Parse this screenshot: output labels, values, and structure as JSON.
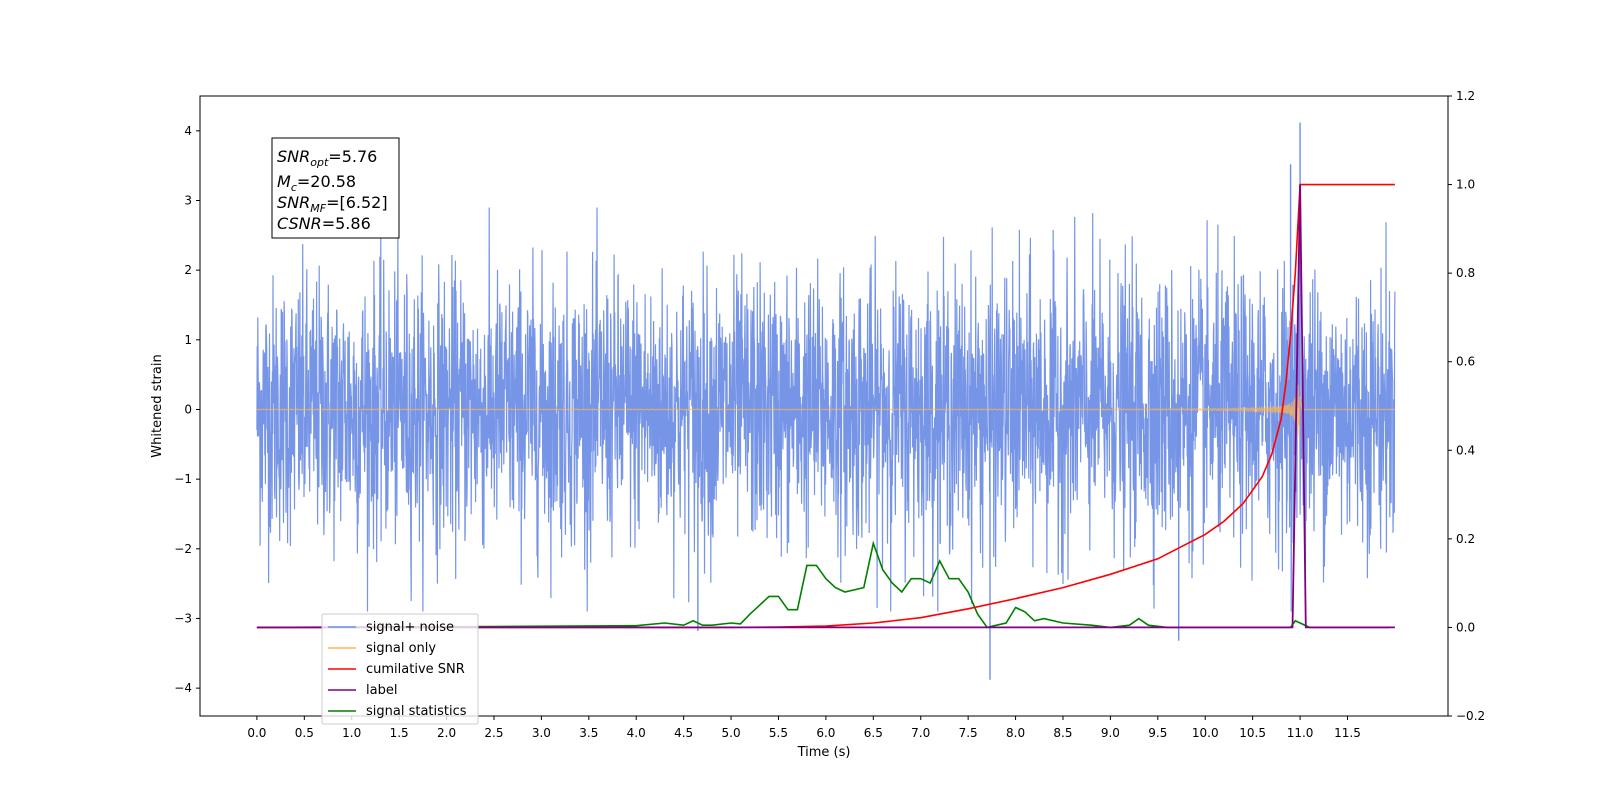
{
  "chart_data": {
    "type": "line",
    "xlabel": "Time (s)",
    "ylabel_left": "Whitened strain",
    "ylabel_right": "",
    "xlim": [
      -0.6,
      12.56
    ],
    "ylim_left": [
      -4.4,
      4.5
    ],
    "ylim_right": [
      -0.2,
      1.2
    ],
    "x_ticks": [
      0.0,
      0.5,
      1.0,
      1.5,
      2.0,
      2.5,
      3.0,
      3.5,
      4.0,
      4.5,
      5.0,
      5.5,
      6.0,
      6.5,
      7.0,
      7.5,
      8.0,
      8.5,
      9.0,
      9.5,
      10.0,
      10.5,
      11.0,
      11.5
    ],
    "x_tick_labels": [
      "0.0",
      "0.5",
      "1.0",
      "1.5",
      "2.0",
      "2.5",
      "3.0",
      "3.5",
      "4.0",
      "4.5",
      "5.0",
      "5.5",
      "6.0",
      "6.5",
      "7.0",
      "7.5",
      "8.0",
      "8.5",
      "9.0",
      "9.5",
      "10.0",
      "10.5",
      "11.0",
      "11.5"
    ],
    "y_ticks_left": [
      4,
      3,
      2,
      1,
      0,
      -1,
      -2,
      -3,
      -4
    ],
    "y_tick_labels_left": [
      "4",
      "3",
      "2",
      "1",
      "0",
      "−1",
      "−2",
      "−3",
      "−4"
    ],
    "y_ticks_right": [
      1.2,
      1.0,
      0.8,
      0.6,
      0.4,
      0.2,
      0.0,
      -0.2
    ],
    "y_tick_labels_right": [
      "1.2",
      "1.0",
      "0.8",
      "0.6",
      "0.4",
      "0.2",
      "0.0",
      "−0.2"
    ],
    "grid": false,
    "legend_position": "lower-left",
    "annotation": {
      "snr_opt": "5.76",
      "mc": "20.58",
      "snr_mf": "[6.52]",
      "csnr": "5.86"
    },
    "series": [
      {
        "name": "signal+ noise",
        "axis": "left",
        "color": "#6f8fe6",
        "x_range": [
          0.0,
          12.0
        ],
        "approx_amplitude": 2.2,
        "notable_peaks": [
          {
            "x": 11.0,
            "y": 4.12
          },
          {
            "x": 10.9,
            "y": 3.52
          },
          {
            "x": 7.73,
            "y": -3.88
          },
          {
            "x": 4.65,
            "y": -3.18
          },
          {
            "x": 9.72,
            "y": -3.32
          }
        ]
      },
      {
        "name": "signal only",
        "axis": "left",
        "color": "#ffb74d",
        "x_range": [
          0.0,
          12.0
        ],
        "chirp_end": 11.0,
        "peak_amplitude": 0.45
      },
      {
        "name": "cumilative SNR",
        "axis": "right",
        "color": "#ff0000",
        "x": [
          0.0,
          4.0,
          5.0,
          5.5,
          6.0,
          6.5,
          7.0,
          7.5,
          8.0,
          8.5,
          9.0,
          9.5,
          10.0,
          10.2,
          10.4,
          10.6,
          10.7,
          10.8,
          10.85,
          10.9,
          10.95,
          11.0,
          12.0
        ],
        "values": [
          0.0,
          0.0,
          0.0,
          0.001,
          0.003,
          0.01,
          0.022,
          0.042,
          0.065,
          0.09,
          0.12,
          0.155,
          0.21,
          0.24,
          0.28,
          0.34,
          0.39,
          0.47,
          0.55,
          0.66,
          0.8,
          1.0,
          1.0
        ]
      },
      {
        "name": "label",
        "axis": "right",
        "color": "#800080",
        "x": [
          0.0,
          10.92,
          11.0,
          11.06,
          12.0
        ],
        "values": [
          0.0,
          0.0,
          1.0,
          0.0,
          0.0
        ]
      },
      {
        "name": "signal statistics",
        "axis": "right",
        "color": "#008000",
        "x": [
          0.0,
          2.5,
          4.0,
          4.3,
          4.5,
          4.6,
          4.7,
          4.8,
          5.0,
          5.1,
          5.2,
          5.3,
          5.4,
          5.5,
          5.6,
          5.7,
          5.8,
          5.9,
          6.0,
          6.1,
          6.2,
          6.4,
          6.5,
          6.6,
          6.7,
          6.8,
          6.9,
          7.0,
          7.1,
          7.2,
          7.3,
          7.4,
          7.5,
          7.6,
          7.7,
          7.8,
          7.9,
          8.0,
          8.1,
          8.2,
          8.3,
          8.5,
          8.8,
          9.0,
          9.2,
          9.3,
          9.4,
          9.6,
          10.0,
          10.9,
          10.95,
          11.0,
          11.1,
          11.5,
          11.94
        ],
        "values": [
          0.0,
          0.002,
          0.004,
          0.01,
          0.005,
          0.015,
          0.005,
          0.005,
          0.01,
          0.008,
          0.03,
          0.05,
          0.07,
          0.07,
          0.04,
          0.04,
          0.14,
          0.14,
          0.11,
          0.09,
          0.08,
          0.09,
          0.19,
          0.13,
          0.1,
          0.08,
          0.11,
          0.11,
          0.1,
          0.15,
          0.11,
          0.11,
          0.08,
          0.03,
          0.0,
          0.005,
          0.01,
          0.045,
          0.035,
          0.015,
          0.02,
          0.01,
          0.005,
          0.0,
          0.005,
          0.02,
          0.005,
          0.0,
          0.0,
          0.0,
          0.015,
          0.01,
          0.0,
          0.0,
          0.0
        ]
      }
    ]
  }
}
